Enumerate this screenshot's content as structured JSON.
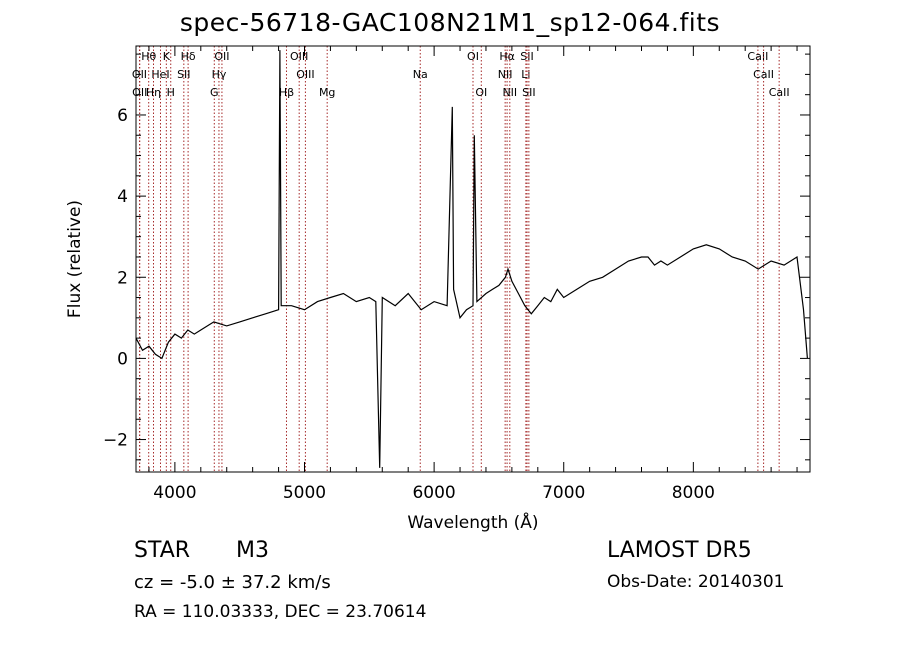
{
  "title": "spec-56718-GAC108N21M1_sp12-064.fits",
  "chart_data": {
    "type": "line",
    "xlabel": "Wavelength (Å)",
    "ylabel": "Flux (relative)",
    "xlim": [
      3700,
      8900
    ],
    "ylim": [
      -2.8,
      7.7
    ],
    "xticks": [
      4000,
      5000,
      6000,
      7000,
      8000
    ],
    "yticks": [
      -2,
      0,
      2,
      4,
      6
    ],
    "grid": false,
    "colors": {
      "spectrum": "#000000",
      "line_markers": "#a52a2a"
    },
    "series": [
      {
        "name": "",
        "x": [
          3700,
          3750,
          3800,
          3850,
          3900,
          3950,
          4000,
          4050,
          4100,
          4150,
          4200,
          4300,
          4400,
          4500,
          4600,
          4700,
          4800,
          4810,
          4820,
          4900,
          5000,
          5100,
          5200,
          5300,
          5400,
          5500,
          5550,
          5580,
          5600,
          5700,
          5800,
          5900,
          6000,
          6100,
          6140,
          6150,
          6200,
          6250,
          6300,
          6310,
          6330,
          6400,
          6450,
          6500,
          6550,
          6570,
          6600,
          6650,
          6700,
          6750,
          6800,
          6850,
          6900,
          6950,
          7000,
          7100,
          7200,
          7300,
          7400,
          7500,
          7600,
          7650,
          7700,
          7750,
          7800,
          7900,
          8000,
          8100,
          8200,
          8300,
          8400,
          8500,
          8600,
          8700,
          8800,
          8850,
          8880
        ],
        "y": [
          0.5,
          0.2,
          0.3,
          0.1,
          0.0,
          0.4,
          0.6,
          0.5,
          0.7,
          0.6,
          0.7,
          0.9,
          0.8,
          0.9,
          1.0,
          1.1,
          1.2,
          7.6,
          1.3,
          1.3,
          1.2,
          1.4,
          1.5,
          1.6,
          1.4,
          1.5,
          1.4,
          -2.7,
          1.5,
          1.3,
          1.6,
          1.2,
          1.4,
          1.3,
          6.2,
          1.7,
          1.0,
          1.2,
          1.3,
          5.5,
          1.4,
          1.6,
          1.7,
          1.8,
          2.0,
          2.2,
          1.9,
          1.6,
          1.3,
          1.1,
          1.3,
          1.5,
          1.4,
          1.7,
          1.5,
          1.7,
          1.9,
          2.0,
          2.2,
          2.4,
          2.5,
          2.5,
          2.3,
          2.4,
          2.3,
          2.5,
          2.7,
          2.8,
          2.7,
          2.5,
          2.4,
          2.2,
          2.4,
          2.3,
          2.5,
          1.2,
          0.0
        ]
      }
    ],
    "line_markers": [
      {
        "label": "Hθ",
        "x": 3798,
        "row": 0
      },
      {
        "label": "K",
        "x": 3934,
        "row": 0
      },
      {
        "label": "Hδ",
        "x": 4102,
        "row": 0
      },
      {
        "label": "OII",
        "x": 4363,
        "row": 0
      },
      {
        "label": "OIII",
        "x": 4959,
        "row": 0
      },
      {
        "label": "OI",
        "x": 6300,
        "row": 0
      },
      {
        "label": "Hα",
        "x": 6563,
        "row": 0
      },
      {
        "label": "SII",
        "x": 6717,
        "row": 0
      },
      {
        "label": "CaII",
        "x": 8498,
        "row": 0
      },
      {
        "label": "OII",
        "x": 3727,
        "row": 1
      },
      {
        "label": "HeI",
        "x": 3889,
        "row": 1
      },
      {
        "label": "SII",
        "x": 4069,
        "row": 1
      },
      {
        "label": "Hγ",
        "x": 4340,
        "row": 1
      },
      {
        "label": "OIII",
        "x": 5007,
        "row": 1
      },
      {
        "label": "Na",
        "x": 5893,
        "row": 1
      },
      {
        "label": "NII",
        "x": 6548,
        "row": 1
      },
      {
        "label": "Li",
        "x": 6708,
        "row": 1
      },
      {
        "label": "CaII",
        "x": 8542,
        "row": 1
      },
      {
        "label": "OII",
        "x": 3729,
        "row": 2
      },
      {
        "label": "Hη",
        "x": 3835,
        "row": 2
      },
      {
        "label": "H",
        "x": 3968,
        "row": 2
      },
      {
        "label": "G",
        "x": 4304,
        "row": 2
      },
      {
        "label": "Hβ",
        "x": 4861,
        "row": 2
      },
      {
        "label": "Mg",
        "x": 5175,
        "row": 2
      },
      {
        "label": "OI",
        "x": 6364,
        "row": 2
      },
      {
        "label": "NII",
        "x": 6584,
        "row": 2
      },
      {
        "label": "SII",
        "x": 6731,
        "row": 2
      },
      {
        "label": "CaII",
        "x": 8662,
        "row": 2
      }
    ]
  },
  "object": {
    "class": "STAR",
    "subclass": "M3"
  },
  "redshift_text": "cz = -5.0 ± 37.2 km/s",
  "radec_text": "RA = 110.03333, DEC =  23.70614",
  "survey": "LAMOST DR5",
  "obs_date": "Obs-Date: 20140301"
}
